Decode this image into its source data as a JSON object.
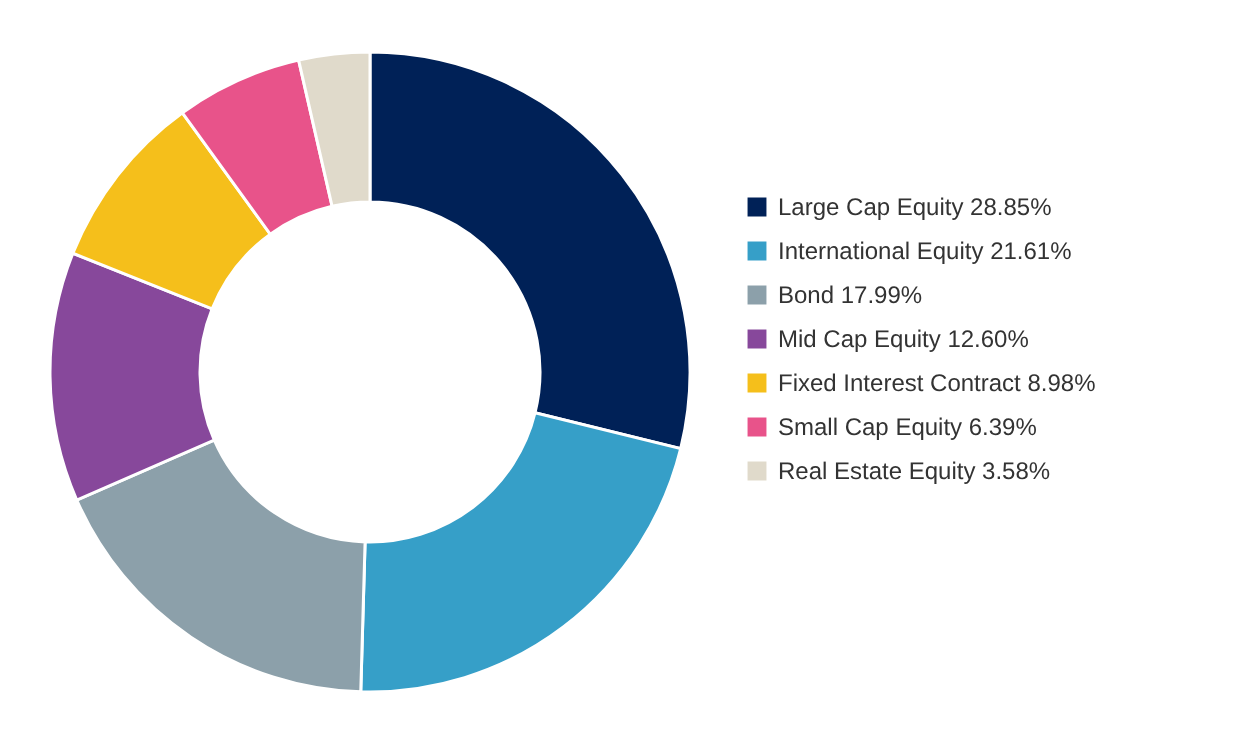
{
  "chart_data": {
    "type": "donut",
    "categories": [
      "Large Cap Equity 28.85%",
      "International Equity 21.61%",
      "Bond 17.99%",
      "Mid Cap Equity 12.60%",
      "Fixed Interest Contract 8.98%",
      "Small Cap Equity 6.39%",
      "Real Estate Equity 3.58%"
    ],
    "values": [
      28.85,
      21.61,
      17.99,
      12.6,
      8.98,
      6.39,
      3.58
    ],
    "colors": [
      "#002157",
      "#369fc8",
      "#8ca0aa",
      "#87489b",
      "#f5bf1b",
      "#e8538a",
      "#e0dacb"
    ],
    "legend": "right"
  }
}
